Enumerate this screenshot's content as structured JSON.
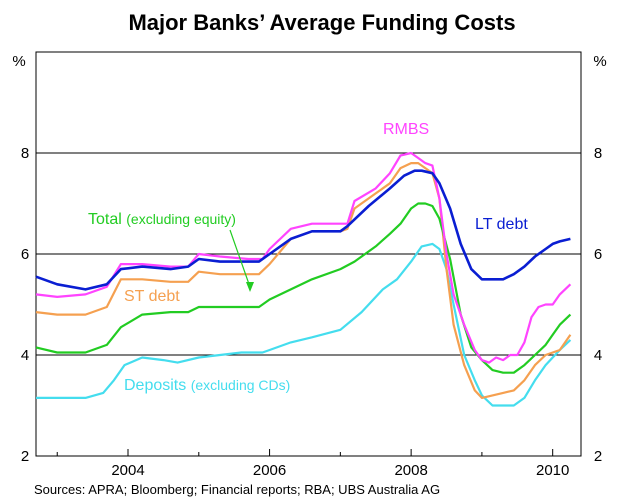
{
  "chart_data": {
    "type": "line",
    "title": "Major Banks’ Average Funding Costs",
    "ylabel_left": "%",
    "ylabel_right": "%",
    "ylim": [
      2,
      10
    ],
    "yticks": [
      "2",
      "4",
      "6",
      "8"
    ],
    "xlim": [
      2002.7,
      2010.4
    ],
    "xticks": [
      "2004",
      "2006",
      "2008",
      "2010"
    ],
    "source": "Sources: APRA; Bloomberg; Financial reports; RBA; UBS Australia AG",
    "colors": {
      "RMBS": "#ff44ff",
      "LT debt": "#0a1ed2",
      "Total": "#22cc22",
      "ST debt": "#f5a050",
      "Deposits": "#44ddee"
    },
    "series": [
      {
        "name": "LT debt",
        "label": "LT debt",
        "label_note": "",
        "x": [
          2002.7,
          2003.0,
          2003.4,
          2003.7,
          2003.9,
          2004.2,
          2004.6,
          2004.85,
          2005.0,
          2005.3,
          2005.7,
          2005.85,
          2006.0,
          2006.3,
          2006.6,
          2007.0,
          2007.1,
          2007.4,
          2007.7,
          2007.9,
          2008.05,
          2008.15,
          2008.3,
          2008.4,
          2008.55,
          2008.7,
          2008.85,
          2009.0,
          2009.15,
          2009.3,
          2009.45,
          2009.6,
          2009.75,
          2009.9,
          2010.0,
          2010.1,
          2010.25
        ],
        "y": [
          5.55,
          5.4,
          5.3,
          5.4,
          5.7,
          5.75,
          5.7,
          5.75,
          5.9,
          5.85,
          5.85,
          5.85,
          6.0,
          6.3,
          6.45,
          6.45,
          6.55,
          6.95,
          7.3,
          7.55,
          7.65,
          7.65,
          7.6,
          7.4,
          6.9,
          6.2,
          5.7,
          5.5,
          5.5,
          5.5,
          5.6,
          5.75,
          5.95,
          6.1,
          6.2,
          6.25,
          6.3
        ]
      },
      {
        "name": "RMBS",
        "label": "RMBS",
        "label_note": "",
        "x": [
          2002.7,
          2003.0,
          2003.4,
          2003.7,
          2003.9,
          2004.2,
          2004.6,
          2004.85,
          2005.0,
          2005.3,
          2005.7,
          2005.9,
          2006.0,
          2006.3,
          2006.6,
          2007.0,
          2007.1,
          2007.2,
          2007.5,
          2007.7,
          2007.85,
          2008.0,
          2008.1,
          2008.2,
          2008.3,
          2008.4,
          2008.5,
          2008.6,
          2008.75,
          2008.9,
          2009.0,
          2009.1,
          2009.2,
          2009.3,
          2009.4,
          2009.5,
          2009.6,
          2009.7,
          2009.8,
          2009.9,
          2010.0,
          2010.1,
          2010.25
        ],
        "y": [
          5.2,
          5.15,
          5.2,
          5.35,
          5.8,
          5.8,
          5.75,
          5.75,
          6.0,
          5.95,
          5.9,
          5.9,
          6.1,
          6.5,
          6.6,
          6.6,
          6.6,
          7.05,
          7.3,
          7.6,
          7.95,
          8.0,
          7.9,
          7.8,
          7.75,
          7.1,
          6.0,
          5.2,
          4.6,
          4.1,
          3.9,
          3.85,
          3.95,
          3.9,
          4.0,
          4.0,
          4.25,
          4.75,
          4.95,
          5.0,
          5.0,
          5.2,
          5.4
        ]
      },
      {
        "name": "Total",
        "label": "Total",
        "label_note": "(excluding equity)",
        "x": [
          2002.7,
          2003.0,
          2003.4,
          2003.7,
          2003.9,
          2004.2,
          2004.6,
          2004.85,
          2005.0,
          2005.3,
          2005.7,
          2005.85,
          2006.0,
          2006.3,
          2006.6,
          2007.0,
          2007.2,
          2007.5,
          2007.7,
          2007.85,
          2008.0,
          2008.1,
          2008.2,
          2008.3,
          2008.4,
          2008.55,
          2008.7,
          2008.85,
          2009.0,
          2009.15,
          2009.3,
          2009.45,
          2009.6,
          2009.75,
          2009.9,
          2010.0,
          2010.1,
          2010.25
        ],
        "y": [
          4.15,
          4.05,
          4.05,
          4.2,
          4.55,
          4.8,
          4.85,
          4.85,
          4.95,
          4.95,
          4.95,
          4.95,
          5.1,
          5.3,
          5.5,
          5.7,
          5.85,
          6.15,
          6.4,
          6.6,
          6.9,
          7.0,
          7.0,
          6.95,
          6.7,
          5.9,
          4.8,
          4.15,
          3.9,
          3.7,
          3.65,
          3.65,
          3.8,
          4.0,
          4.2,
          4.4,
          4.6,
          4.8
        ]
      },
      {
        "name": "ST debt",
        "label": "ST debt",
        "label_note": "",
        "x": [
          2002.7,
          2003.0,
          2003.4,
          2003.7,
          2003.9,
          2004.2,
          2004.6,
          2004.85,
          2005.0,
          2005.3,
          2005.7,
          2005.85,
          2006.0,
          2006.3,
          2006.6,
          2007.0,
          2007.1,
          2007.2,
          2007.5,
          2007.7,
          2007.85,
          2008.0,
          2008.1,
          2008.2,
          2008.3,
          2008.4,
          2008.5,
          2008.6,
          2008.75,
          2008.9,
          2009.0,
          2009.15,
          2009.3,
          2009.45,
          2009.6,
          2009.75,
          2009.9,
          2010.0,
          2010.1,
          2010.25
        ],
        "y": [
          4.85,
          4.8,
          4.8,
          4.95,
          5.5,
          5.5,
          5.45,
          5.45,
          5.65,
          5.6,
          5.6,
          5.6,
          5.8,
          6.3,
          6.45,
          6.45,
          6.5,
          6.9,
          7.2,
          7.4,
          7.7,
          7.8,
          7.8,
          7.7,
          7.6,
          7.1,
          5.7,
          4.6,
          3.8,
          3.3,
          3.15,
          3.2,
          3.25,
          3.3,
          3.5,
          3.8,
          4.0,
          4.05,
          4.1,
          4.4
        ]
      },
      {
        "name": "Deposits",
        "label": "Deposits",
        "label_note": "(excluding CDs)",
        "x": [
          2002.7,
          2003.0,
          2003.4,
          2003.65,
          2003.8,
          2003.95,
          2004.2,
          2004.5,
          2004.7,
          2005.0,
          2005.3,
          2005.6,
          2005.9,
          2006.0,
          2006.3,
          2006.6,
          2007.0,
          2007.3,
          2007.6,
          2007.8,
          2008.0,
          2008.15,
          2008.3,
          2008.4,
          2008.5,
          2008.6,
          2008.75,
          2008.9,
          2009.0,
          2009.15,
          2009.3,
          2009.45,
          2009.6,
          2009.75,
          2009.9,
          2010.0,
          2010.1,
          2010.25
        ],
        "y": [
          3.15,
          3.15,
          3.15,
          3.25,
          3.5,
          3.8,
          3.95,
          3.9,
          3.85,
          3.95,
          4.0,
          4.05,
          4.05,
          4.1,
          4.25,
          4.35,
          4.5,
          4.85,
          5.3,
          5.5,
          5.85,
          6.15,
          6.2,
          6.1,
          5.7,
          5.0,
          4.0,
          3.5,
          3.2,
          3.0,
          3.0,
          3.0,
          3.15,
          3.5,
          3.8,
          3.95,
          4.1,
          4.3
        ]
      }
    ]
  }
}
